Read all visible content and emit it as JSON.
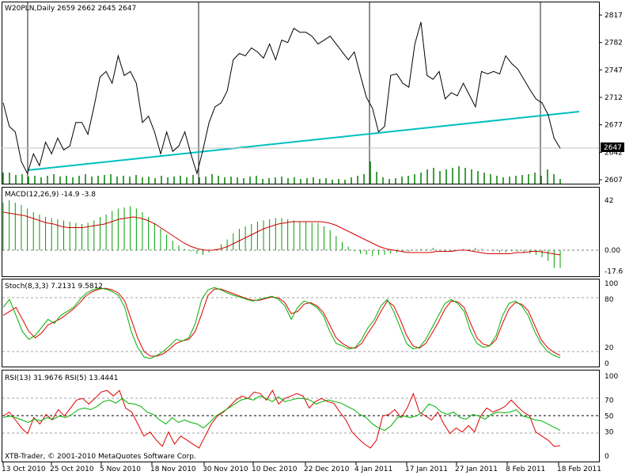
{
  "price_panel": {
    "title": "W20PLN,Daily  2659 2662 2645 2647",
    "ticks": [
      "2817",
      "2782",
      "2747",
      "2712",
      "2677",
      "2642",
      "2607"
    ],
    "current_price": "2647",
    "close_prices": [
      2705,
      2675,
      2668,
      2630,
      2615,
      2640,
      2625,
      2655,
      2640,
      2660,
      2645,
      2650,
      2680,
      2680,
      2665,
      2700,
      2738,
      2745,
      2730,
      2765,
      2740,
      2745,
      2730,
      2680,
      2688,
      2668,
      2640,
      2668,
      2643,
      2650,
      2668,
      2640,
      2615,
      2645,
      2680,
      2700,
      2705,
      2720,
      2760,
      2768,
      2765,
      2775,
      2770,
      2762,
      2780,
      2760,
      2785,
      2782,
      2800,
      2795,
      2795,
      2790,
      2780,
      2785,
      2790,
      2780,
      2770,
      2760,
      2770,
      2740,
      2712,
      2698,
      2668,
      2675,
      2740,
      2742,
      2730,
      2725,
      2780,
      2808,
      2740,
      2735,
      2745,
      2710,
      2718,
      2714,
      2730,
      2715,
      2700,
      2745,
      2742,
      2745,
      2742,
      2765,
      2755,
      2748,
      2735,
      2722,
      2710,
      2705,
      2690,
      2660,
      2647
    ]
  },
  "macd_panel": {
    "title": "MACD(12,26,9) -14.9 -3.8",
    "ticks": [
      "42",
      "0.00",
      "-17.6"
    ],
    "histogram": [
      40,
      42,
      40,
      38,
      35,
      32,
      30,
      28,
      27,
      26,
      25,
      24,
      23,
      22,
      23,
      25,
      28,
      30,
      33,
      35,
      36,
      37,
      35,
      32,
      28,
      23,
      18,
      13,
      8,
      4,
      1,
      -1,
      -3,
      -4,
      -2,
      1,
      5,
      9,
      14,
      18,
      20,
      22,
      24,
      25,
      26,
      27,
      27,
      26,
      25,
      24,
      24,
      23,
      23,
      20,
      17,
      12,
      7,
      3,
      -1,
      -3,
      -4,
      -5,
      -4,
      -4,
      -3,
      -2,
      -1,
      -1,
      0,
      1,
      1,
      2,
      0,
      -1,
      -1,
      0,
      1,
      1,
      2,
      1,
      0,
      -1,
      -2,
      -2,
      -1,
      -1,
      -2,
      -3,
      -4,
      -6,
      -9,
      -15,
      -15
    ],
    "signal": [
      32,
      31,
      30,
      29,
      27,
      25,
      23,
      22,
      20,
      19,
      19,
      19,
      20,
      21,
      22,
      24,
      26,
      27,
      28,
      27,
      25,
      22,
      18,
      14,
      10,
      6,
      3,
      1,
      0,
      0,
      1,
      3,
      6,
      9,
      12,
      15,
      18,
      20,
      22,
      23,
      24,
      24,
      24,
      24,
      24,
      23,
      21,
      18,
      15,
      12,
      9,
      6,
      3,
      1,
      0,
      -1,
      -2,
      -2,
      -2,
      -2,
      -1,
      -1,
      -1,
      0,
      0,
      -1,
      -2,
      -3,
      -3,
      -3,
      -3,
      -2,
      -2,
      -1,
      -1,
      -2,
      -3,
      -4
    ]
  },
  "stoch_panel": {
    "title": "Stoch(8,3,3) 7.2131 9.5812",
    "ticks": [
      "100",
      "80",
      "20",
      "0"
    ],
    "main": [
      70,
      80,
      60,
      40,
      30,
      35,
      45,
      55,
      50,
      60,
      65,
      70,
      80,
      88,
      92,
      94,
      93,
      90,
      85,
      70,
      40,
      20,
      8,
      6,
      10,
      15,
      22,
      30,
      28,
      32,
      50,
      80,
      92,
      95,
      92,
      88,
      85,
      83,
      80,
      78,
      80,
      82,
      84,
      80,
      72,
      55,
      70,
      78,
      75,
      70,
      60,
      40,
      25,
      22,
      18,
      20,
      30,
      45,
      55,
      72,
      80,
      65,
      45,
      25,
      18,
      20,
      30,
      45,
      60,
      75,
      80,
      75,
      65,
      40,
      25,
      20,
      22,
      35,
      60,
      75,
      78,
      72,
      60,
      40,
      25,
      15,
      10,
      7
    ],
    "signal": [
      60,
      65,
      70,
      55,
      40,
      32,
      38,
      48,
      52,
      56,
      62,
      68,
      76,
      85,
      90,
      93,
      94,
      92,
      88,
      78,
      55,
      32,
      15,
      9,
      9,
      12,
      18,
      25,
      28,
      30,
      40,
      62,
      85,
      93,
      93,
      90,
      87,
      84,
      81,
      79,
      79,
      81,
      83,
      82,
      76,
      62,
      65,
      74,
      76,
      72,
      64,
      48,
      32,
      25,
      20,
      19,
      25,
      38,
      50,
      65,
      78,
      72,
      55,
      35,
      22,
      19,
      25,
      38,
      52,
      68,
      78,
      77,
      70,
      50,
      32,
      24,
      22,
      30,
      50,
      68,
      76,
      74,
      66,
      48,
      30,
      20,
      14,
      10
    ]
  },
  "rsi_panel": {
    "title": "RSI(13) 31.9676  RSI(5) 13.4441",
    "ticks": [
      "100",
      "70",
      "50",
      "30",
      "0"
    ],
    "rsi13": [
      48,
      50,
      48,
      45,
      42,
      46,
      44,
      48,
      46,
      50,
      48,
      52,
      58,
      60,
      58,
      62,
      68,
      70,
      66,
      72,
      66,
      65,
      62,
      55,
      52,
      45,
      40,
      48,
      42,
      45,
      42,
      40,
      35,
      42,
      50,
      55,
      60,
      65,
      70,
      72,
      70,
      75,
      72,
      68,
      74,
      68,
      70,
      72,
      72,
      70,
      65,
      68,
      70,
      68,
      66,
      62,
      58,
      52,
      48,
      40,
      35,
      32,
      38,
      48,
      50,
      48,
      50,
      55,
      65,
      62,
      55,
      52,
      55,
      48,
      46,
      52,
      50,
      46,
      52,
      55,
      54,
      55,
      58,
      50,
      48,
      45,
      44,
      40,
      36,
      32
    ],
    "rsi5": [
      50,
      55,
      45,
      35,
      28,
      48,
      40,
      52,
      45,
      58,
      50,
      60,
      70,
      72,
      65,
      72,
      80,
      82,
      75,
      82,
      60,
      55,
      40,
      25,
      30,
      20,
      12,
      30,
      15,
      25,
      20,
      15,
      10,
      25,
      40,
      50,
      55,
      62,
      70,
      75,
      72,
      80,
      78,
      70,
      82,
      65,
      72,
      75,
      78,
      75,
      60,
      68,
      72,
      68,
      66,
      55,
      45,
      30,
      22,
      15,
      10,
      20,
      50,
      52,
      58,
      48,
      60,
      78,
      55,
      50,
      45,
      55,
      40,
      28,
      35,
      30,
      38,
      30,
      50,
      60,
      55,
      58,
      62,
      70,
      62,
      55,
      50,
      30,
      25,
      20,
      12,
      13
    ]
  },
  "date_axis": {
    "labels": [
      "13 Oct 2010",
      "25 Oct 2010",
      "5 Nov 2010",
      "18 Nov 2010",
      "30 Nov 2010",
      "10 Dec 2010",
      "22 Dec 2010",
      "4 Jan 2011",
      "17 Jan 2011",
      "27 Jan 2011",
      "8 Feb 2011",
      "18 Feb 2011"
    ]
  },
  "footer": {
    "copyright": "XTB-Trader, © 2001-2010 MetaQuotes Software Corp."
  },
  "colors": {
    "price_line": "#000000",
    "trend_line": "#00c0c0",
    "volume": "#008000",
    "macd_hist": "#00a000",
    "macd_signal": "#d00000",
    "stoch_main": "#00b000",
    "stoch_signal": "#e00000",
    "rsi13": "#00b000",
    "rsi5": "#e00000",
    "current_price_bg": "#000000"
  }
}
